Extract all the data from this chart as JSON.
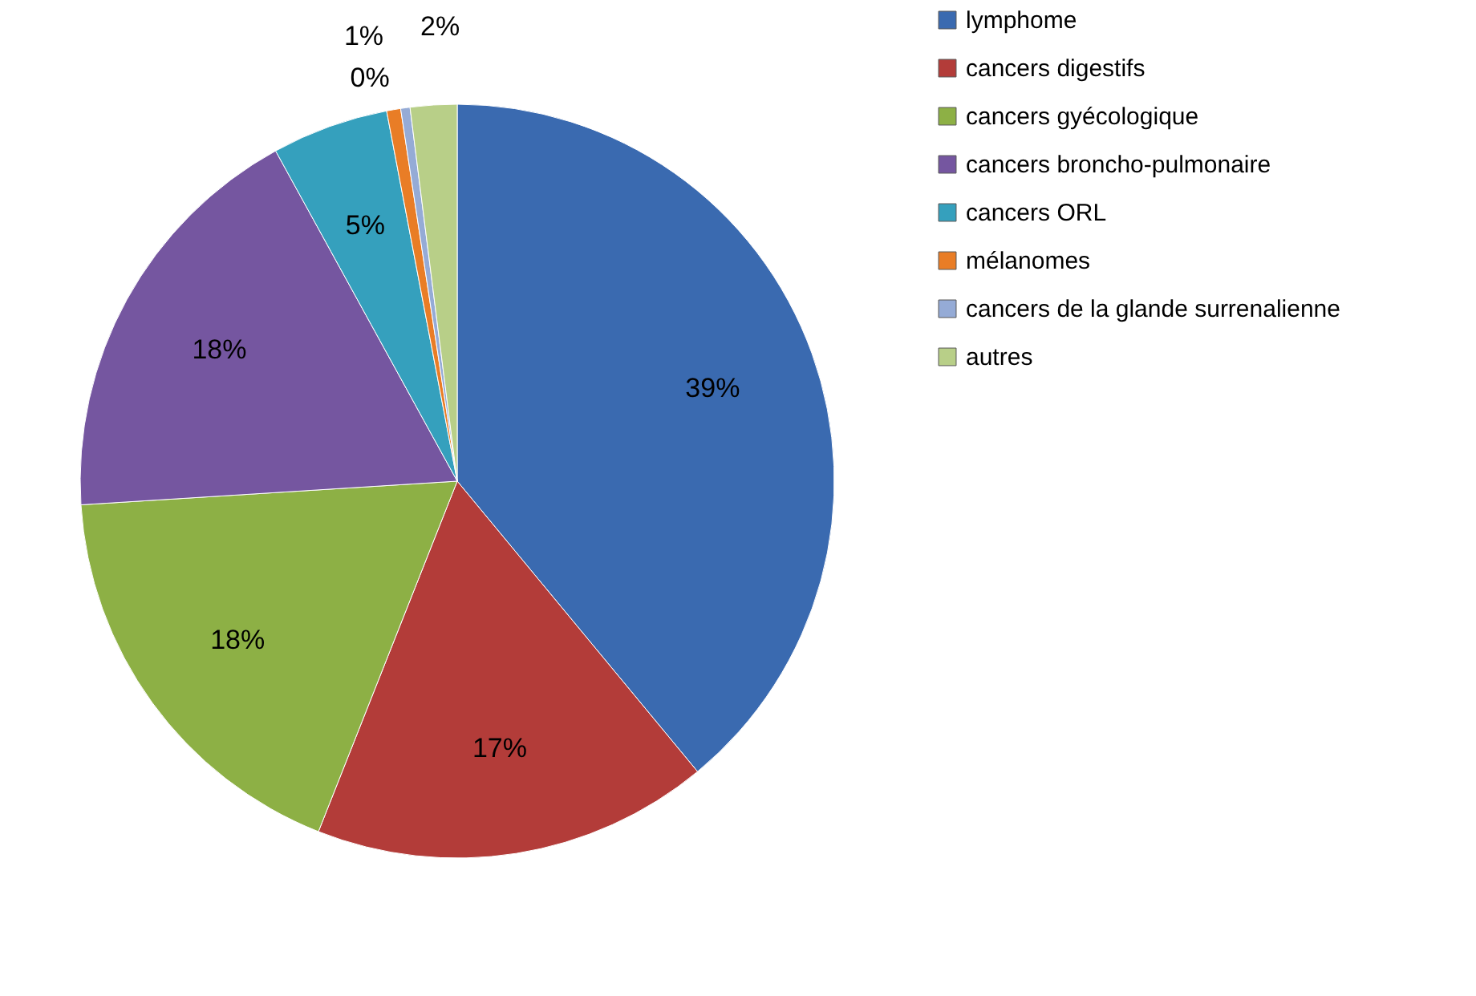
{
  "chart_data": {
    "type": "pie",
    "categories": [
      "lymphome",
      "cancers digestifs",
      "cancers gyécologique",
      "cancers broncho-pulmonaire",
      "cancers ORL",
      "mélanomes",
      "cancers de la glande surrenalienne",
      "autres"
    ],
    "values": [
      39,
      17,
      18,
      18,
      5,
      0.6,
      0.4,
      2
    ],
    "value_labels": [
      "39%",
      "17%",
      "18%",
      "18%",
      "5%",
      "1%",
      "0%",
      "2%"
    ],
    "colors": [
      "#3a6ab0",
      "#b33c39",
      "#8db045",
      "#7556a0",
      "#35a0bd",
      "#e97d26",
      "#95abd6",
      "#b8cf88"
    ],
    "legend": "right"
  }
}
